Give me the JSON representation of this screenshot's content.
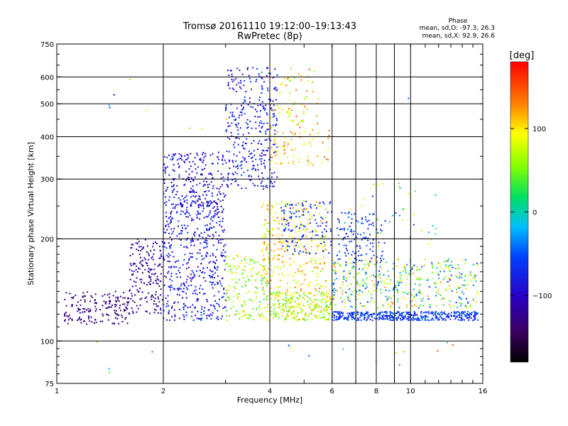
{
  "chart_data": {
    "type": "scatter",
    "title": "Tromsø 20161110 19:12:00–19:13:43",
    "subtitle": "RwPretec (8p)",
    "xlabel": "Frequency [MHz]",
    "ylabel": "Stationary phase Virtual Height [km]",
    "x_scale": "log",
    "y_scale": "log",
    "xlim": [
      1,
      16
    ],
    "ylim": [
      75,
      750
    ],
    "x_ticks": [
      1,
      2,
      4,
      6,
      8,
      10,
      16
    ],
    "x_tick_labels": [
      "1",
      "2",
      "4",
      "6",
      "8",
      "10",
      "16"
    ],
    "x_grid": [
      2,
      4,
      6,
      7,
      8,
      9,
      10
    ],
    "y_ticks": [
      75,
      100,
      200,
      300,
      400,
      500,
      600,
      750
    ],
    "y_tick_labels": [
      "75",
      "100",
      "200",
      "300",
      "400",
      "500",
      "600",
      "750"
    ],
    "y_grid": [
      100,
      200,
      300,
      400,
      500,
      600
    ],
    "grid": true,
    "colorbar": {
      "label": "[deg]",
      "range": [
        -180,
        180
      ],
      "ticks": [
        100,
        0,
        -100
      ],
      "tick_labels": [
        "100",
        "0",
        "−100"
      ],
      "colormap": "rainbow"
    },
    "stats": {
      "heading": "Phase",
      "line1": "mean, sd,O: -97.3, 26.3",
      "line2": "mean, sd,X:  92.9, 26.6",
      "O": {
        "mean": -97.3,
        "sd": 26.3
      },
      "X": {
        "mean": 92.9,
        "sd": 26.6
      }
    },
    "clusters": [
      {
        "f": [
          1.05,
          1.6
        ],
        "h": [
          112,
          140
        ],
        "phase": [
          -150,
          -130
        ],
        "n": 170
      },
      {
        "f": [
          1.6,
          2.0
        ],
        "h": [
          120,
          200
        ],
        "phase": [
          -145,
          -120
        ],
        "n": 180
      },
      {
        "f": [
          2.0,
          3.0
        ],
        "h": [
          115,
          260
        ],
        "phase": [
          -130,
          -80
        ],
        "n": 520
      },
      {
        "f": [
          2.0,
          3.0
        ],
        "h": [
          250,
          360
        ],
        "phase": [
          -130,
          -90
        ],
        "n": 220
      },
      {
        "f": [
          3.0,
          4.2
        ],
        "h": [
          280,
          640
        ],
        "phase": [
          -125,
          -80
        ],
        "n": 340
      },
      {
        "f": [
          3.0,
          4.0
        ],
        "h": [
          115,
          180
        ],
        "phase": [
          0,
          130
        ],
        "n": 170
      },
      {
        "f": [
          3.8,
          5.8
        ],
        "h": [
          140,
          260
        ],
        "phase": [
          60,
          150
        ],
        "n": 300
      },
      {
        "f": [
          4.0,
          6.0
        ],
        "h": [
          115,
          140
        ],
        "phase": [
          20,
          130
        ],
        "n": 280
      },
      {
        "f": [
          4.0,
          6.0
        ],
        "h": [
          330,
          420
        ],
        "phase": [
          80,
          160
        ],
        "n": 80
      },
      {
        "f": [
          4.0,
          5.5
        ],
        "h": [
          420,
          640
        ],
        "phase": [
          40,
          160
        ],
        "n": 70
      },
      {
        "f": [
          4.3,
          6.0
        ],
        "h": [
          180,
          260
        ],
        "phase": [
          -110,
          -70
        ],
        "n": 120
      },
      {
        "f": [
          6.0,
          15.5
        ],
        "h": [
          115,
          122
        ],
        "phase": [
          -110,
          -60
        ],
        "n": 420
      },
      {
        "f": [
          6.0,
          15.5
        ],
        "h": [
          125,
          175
        ],
        "phase": [
          -100,
          140
        ],
        "n": 420
      },
      {
        "f": [
          6.2,
          8.5
        ],
        "h": [
          170,
          240
        ],
        "phase": [
          -110,
          -60
        ],
        "n": 120
      },
      {
        "f": [
          6.5,
          12.0
        ],
        "h": [
          190,
          300
        ],
        "phase": [
          -100,
          120
        ],
        "n": 40
      },
      {
        "f": [
          4.5,
          14.0
        ],
        "h": [
          85,
          100
        ],
        "phase": [
          -110,
          160
        ],
        "n": 12
      },
      {
        "f": [
          1.0,
          2.0
        ],
        "h": [
          80,
          100
        ],
        "phase": [
          -60,
          60
        ],
        "n": 4
      },
      {
        "f": [
          1.3,
          10.0
        ],
        "h": [
          420,
          620
        ],
        "phase": [
          -140,
          120
        ],
        "n": 10
      }
    ]
  }
}
